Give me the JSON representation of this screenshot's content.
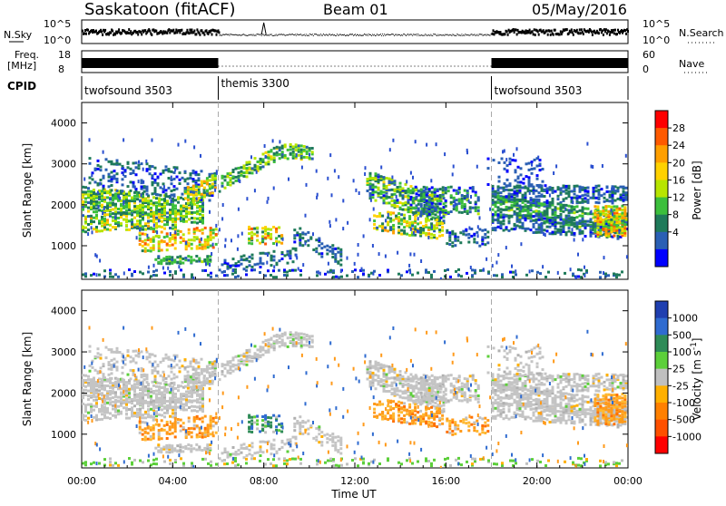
{
  "title": {
    "station": "Saskatoon (fitACF)",
    "beam": "Beam 01",
    "date": "05/May/2016"
  },
  "header_panel": {
    "nsky_label": "N.Sky",
    "nsky_ticks": [
      "10^5",
      "10^0"
    ],
    "nsearch_label": "N.Search",
    "nsearch_ticks": [
      "10^5",
      "10^0"
    ],
    "freq_label_1": "Freq.",
    "freq_label_2": "[MHz]",
    "freq_ticks": [
      "18",
      "8"
    ],
    "nave_label": "Nave",
    "nave_ticks": [
      "60",
      "0"
    ],
    "cpid_label": "CPID",
    "cpid_segments": [
      {
        "label": "twofsound 3503",
        "start_hour": 0,
        "end_hour": 6
      },
      {
        "label": "themis 3300",
        "start_hour": 6,
        "end_hour": 18
      },
      {
        "label": "twofsound 3503",
        "start_hour": 18,
        "end_hour": 24
      }
    ]
  },
  "chart_data": [
    {
      "type": "heatmap",
      "name": "power",
      "ylabel": "Slant Range [km]",
      "xlabel": "Time UT",
      "xlim_hours": [
        0,
        24
      ],
      "ylim": [
        180,
        4500
      ],
      "yticks": [
        "1000",
        "2000",
        "3000",
        "4000"
      ],
      "xticks": [
        "00:00",
        "04:00",
        "08:00",
        "12:00",
        "16:00",
        "20:00",
        "00:00"
      ],
      "colorbar_label": "Power [dB]",
      "colorbar_ticks": [
        "28",
        "24",
        "20",
        "16",
        "12",
        "8",
        "4"
      ],
      "colorbar_colors": [
        "#ff0000",
        "#ff5a00",
        "#ff9f00",
        "#ffd200",
        "#b7e500",
        "#3cbf3c",
        "#1f7a5a",
        "#2a5fb4",
        "#0000ff"
      ]
    },
    {
      "type": "heatmap",
      "name": "velocity",
      "ylabel": "Slant Range [km]",
      "xlabel": "Time UT",
      "xlim_hours": [
        0,
        24
      ],
      "ylim": [
        180,
        4500
      ],
      "yticks": [
        "1000",
        "2000",
        "3000",
        "4000"
      ],
      "xticks": [
        "00:00",
        "04:00",
        "08:00",
        "12:00",
        "16:00",
        "20:00",
        "00:00"
      ],
      "colorbar_label": "Velocity [m s^-1]",
      "colorbar_ticks": [
        "1000",
        "500",
        "100",
        "25",
        "-25",
        "-100",
        "-500",
        "-1000"
      ],
      "colorbar_colors": [
        "#1f3fb0",
        "#2f6bd0",
        "#2e8b57",
        "#5ccf3a",
        "#c0c0c0",
        "#ffb000",
        "#ff8000",
        "#ff5000",
        "#ff0000"
      ]
    }
  ],
  "axis": {
    "xlabel": "Time UT"
  }
}
